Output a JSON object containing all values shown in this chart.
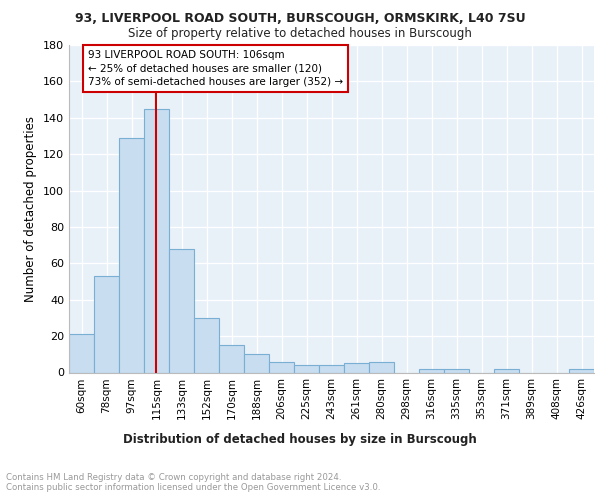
{
  "title1": "93, LIVERPOOL ROAD SOUTH, BURSCOUGH, ORMSKIRK, L40 7SU",
  "title2": "Size of property relative to detached houses in Burscough",
  "xlabel": "Distribution of detached houses by size in Burscough",
  "ylabel": "Number of detached properties",
  "bin_labels": [
    "60sqm",
    "78sqm",
    "97sqm",
    "115sqm",
    "133sqm",
    "152sqm",
    "170sqm",
    "188sqm",
    "206sqm",
    "225sqm",
    "243sqm",
    "261sqm",
    "280sqm",
    "298sqm",
    "316sqm",
    "335sqm",
    "353sqm",
    "371sqm",
    "389sqm",
    "408sqm",
    "426sqm"
  ],
  "bar_values": [
    21,
    53,
    129,
    145,
    68,
    30,
    15,
    10,
    6,
    4,
    4,
    5,
    6,
    0,
    2,
    2,
    0,
    2,
    0,
    0,
    2
  ],
  "bar_color": "#c8ddf0",
  "bar_edge_color": "#7aafd4",
  "background_color": "#e8f0f8",
  "grid_color": "#ffffff",
  "vline_x": 2.97,
  "vline_color": "#cc0000",
  "annotation_text": "93 LIVERPOOL ROAD SOUTH: 106sqm\n← 25% of detached houses are smaller (120)\n73% of semi-detached houses are larger (352) →",
  "annotation_box_color": "#ffffff",
  "annotation_box_edge": "#cc0000",
  "footer_text": "Contains HM Land Registry data © Crown copyright and database right 2024.\nContains public sector information licensed under the Open Government Licence v3.0.",
  "ylim": [
    0,
    180
  ],
  "yticks": [
    0,
    20,
    40,
    60,
    80,
    100,
    120,
    140,
    160,
    180
  ]
}
